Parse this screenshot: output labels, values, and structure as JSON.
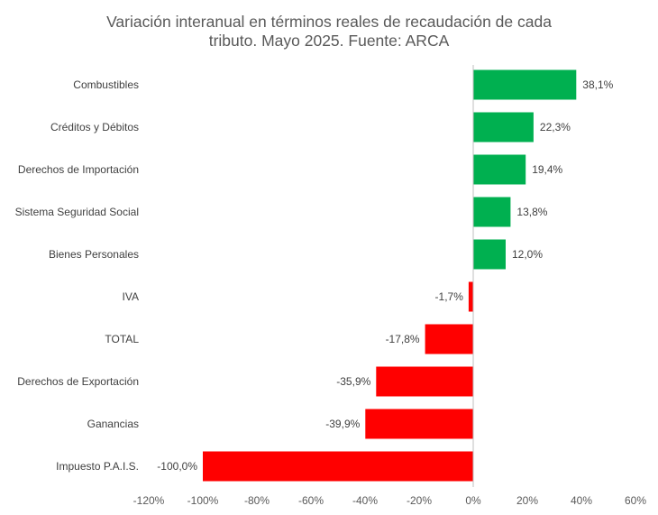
{
  "chart_data": {
    "type": "bar",
    "orientation": "horizontal",
    "title_line1": "Variación interanual en términos reales de recaudación de cada",
    "title_line2": "tributo. Mayo 2025. Fuente: ARCA",
    "categories": [
      "Combustibles",
      "Créditos y Débitos",
      "Derechos de Importación",
      "Sistema Seguridad Social",
      "Bienes Personales",
      "IVA",
      "TOTAL",
      "Derechos de Exportación",
      "Ganancias",
      "Impuesto P.A.I.S."
    ],
    "values": [
      38.1,
      22.3,
      19.4,
      13.8,
      12.0,
      -1.7,
      -17.8,
      -35.9,
      -39.9,
      -100.0
    ],
    "value_labels": [
      "38,1%",
      "22,3%",
      "19,4%",
      "13,8%",
      "12,0%",
      "-1,7%",
      "-17,8%",
      "-35,9%",
      "-39,9%",
      "-100,0%"
    ],
    "xlim": [
      -120,
      60
    ],
    "xticks": [
      -120,
      -100,
      -80,
      -60,
      -40,
      -20,
      0,
      20,
      40,
      60
    ],
    "xtick_labels": [
      "-120%",
      "-100%",
      "-80%",
      "-60%",
      "-40%",
      "-20%",
      "0%",
      "20%",
      "40%",
      "60%"
    ],
    "grid": false,
    "legend": "none",
    "colors": {
      "positive": "#00b050",
      "negative": "#ff0000",
      "axis": "#bfbfbf"
    }
  }
}
